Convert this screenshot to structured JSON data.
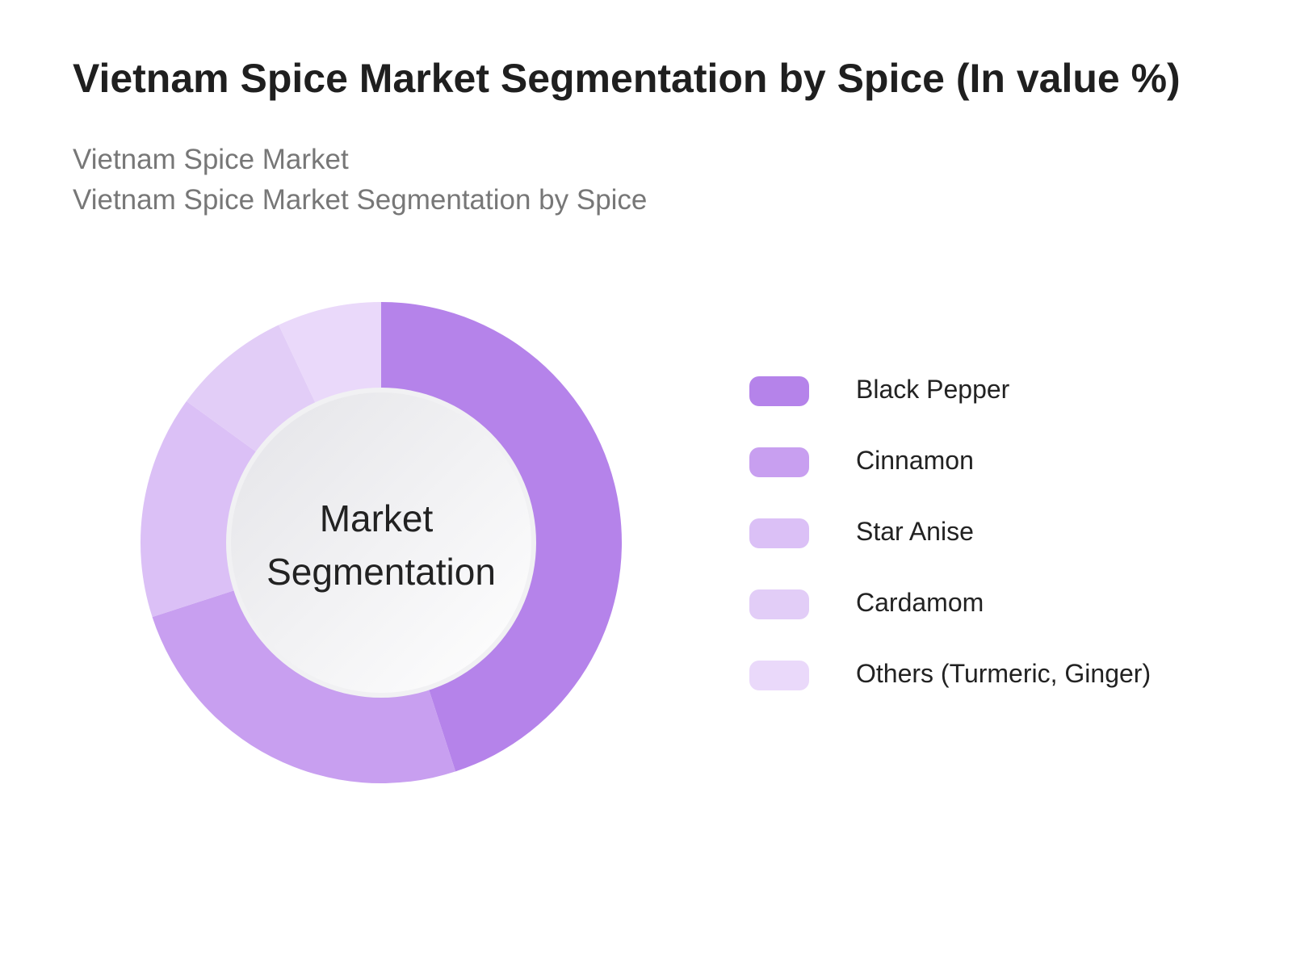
{
  "header": {
    "title": "Vietnam Spice Market Segmentation by Spice (In value %)",
    "subtitle_line1": "Vietnam Spice Market",
    "subtitle_line2": "Vietnam Spice Market Segmentation by Spice"
  },
  "chart_data": {
    "type": "pie",
    "variant": "donut",
    "center_label_line1": "Market",
    "center_label_line2": "Segmentation",
    "categories": [
      "Black Pepper",
      "Cinnamon",
      "Star Anise",
      "Cardamom",
      "Others (Turmeric, Ginger)"
    ],
    "values": [
      45,
      25,
      15,
      8,
      7
    ],
    "colors": [
      "#b583ea",
      "#c89ff0",
      "#dbc0f6",
      "#e2cdf7",
      "#ead9fa"
    ],
    "legend_position": "right"
  }
}
